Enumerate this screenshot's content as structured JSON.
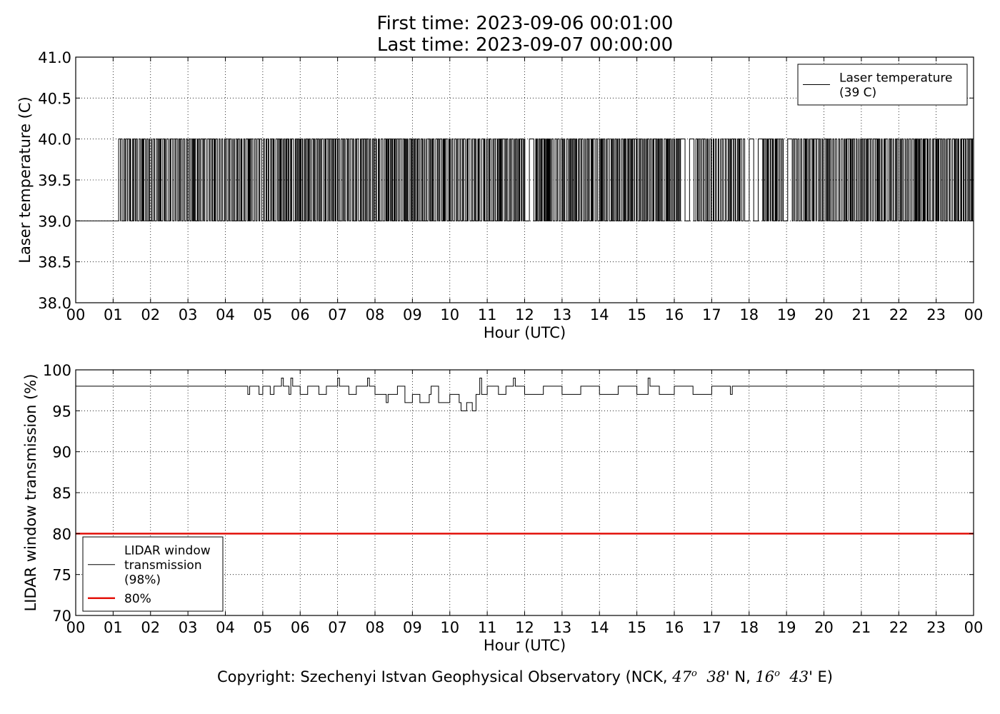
{
  "title": {
    "line1": "First time: 2023-09-06 00:01:00",
    "line2": "Last time: 2023-09-07 00:00:00"
  },
  "copyright": {
    "prefix": "Copyright: Szechenyi Istvan Geophysical Observatory (NCK, ",
    "lat_deg": "47",
    "lat_min": "38",
    "lat_suffix": "' N, ",
    "lon_deg": "16",
    "lon_min": "43",
    "lon_suffix": "' E)",
    "deg_sign": "o"
  },
  "chart_data": [
    {
      "type": "line",
      "title": "",
      "xlabel": "Hour (UTC)",
      "ylabel": "Laser temperature (C)",
      "xlim": [
        0,
        24
      ],
      "ylim": [
        38.0,
        41.0
      ],
      "x_ticks": [
        "00",
        "01",
        "02",
        "03",
        "04",
        "05",
        "06",
        "07",
        "08",
        "09",
        "10",
        "11",
        "12",
        "13",
        "14",
        "15",
        "16",
        "17",
        "18",
        "19",
        "20",
        "21",
        "22",
        "23",
        "00"
      ],
      "y_ticks": [
        "38.0",
        "38.5",
        "39.0",
        "39.5",
        "40.0",
        "40.5",
        "41.0"
      ],
      "grid": true,
      "legend_position": "top-right",
      "series": [
        {
          "name": "Laser temperature\n(39 C)",
          "legend_lines": [
            "Laser temperature",
            "(39 C)"
          ],
          "color": "#000000",
          "levels": [
            39.0,
            40.0
          ],
          "baseline_until_hour": 1.1,
          "note": "rapid toggling between 39.0 and 40.0 C from about 01:05 to 24:00, with calm stretches near 12:00-12:10, 16:10-17:50 and 18:00-18:30",
          "segments": [
            [
              0.0,
              39.0
            ],
            [
              1.1,
              39.0
            ],
            [
              24.0,
              39.0
            ]
          ]
        }
      ]
    },
    {
      "type": "line",
      "title": "",
      "xlabel": "Hour (UTC)",
      "ylabel": "LIDAR window transmission (%)",
      "xlim": [
        0,
        24
      ],
      "ylim": [
        70,
        100
      ],
      "x_ticks": [
        "00",
        "01",
        "02",
        "03",
        "04",
        "05",
        "06",
        "07",
        "08",
        "09",
        "10",
        "11",
        "12",
        "13",
        "14",
        "15",
        "16",
        "17",
        "18",
        "19",
        "20",
        "21",
        "22",
        "23",
        "00"
      ],
      "y_ticks": [
        "70",
        "75",
        "80",
        "85",
        "90",
        "95",
        "100"
      ],
      "grid": true,
      "legend_position": "bottom-left",
      "series": [
        {
          "name": "LIDAR window\ntransmission\n(98%)",
          "legend_lines": [
            "LIDAR window",
            "transmission",
            "(98%)"
          ],
          "color": "#000000",
          "baseline": 98,
          "points": [
            [
              0.0,
              98
            ],
            [
              4.55,
              98
            ],
            [
              4.6,
              97
            ],
            [
              4.65,
              98
            ],
            [
              4.9,
              97
            ],
            [
              5.0,
              98
            ],
            [
              5.2,
              97
            ],
            [
              5.3,
              98
            ],
            [
              5.5,
              99
            ],
            [
              5.55,
              98
            ],
            [
              5.7,
              97
            ],
            [
              5.75,
              99
            ],
            [
              5.8,
              98
            ],
            [
              6.0,
              97
            ],
            [
              6.2,
              98
            ],
            [
              6.5,
              97
            ],
            [
              6.7,
              98
            ],
            [
              7.0,
              99
            ],
            [
              7.05,
              98
            ],
            [
              7.3,
              97
            ],
            [
              7.5,
              98
            ],
            [
              7.8,
              99
            ],
            [
              7.85,
              98
            ],
            [
              8.0,
              97
            ],
            [
              8.3,
              96
            ],
            [
              8.35,
              97
            ],
            [
              8.6,
              98
            ],
            [
              8.8,
              96
            ],
            [
              9.0,
              97
            ],
            [
              9.2,
              96
            ],
            [
              9.45,
              97
            ],
            [
              9.5,
              98
            ],
            [
              9.7,
              96
            ],
            [
              10.0,
              97
            ],
            [
              10.25,
              96
            ],
            [
              10.3,
              95
            ],
            [
              10.45,
              96
            ],
            [
              10.6,
              95
            ],
            [
              10.7,
              97
            ],
            [
              10.8,
              99
            ],
            [
              10.85,
              97
            ],
            [
              11.0,
              98
            ],
            [
              11.3,
              97
            ],
            [
              11.5,
              98
            ],
            [
              11.7,
              99
            ],
            [
              11.75,
              98
            ],
            [
              12.0,
              97
            ],
            [
              12.5,
              98
            ],
            [
              13.0,
              97
            ],
            [
              13.5,
              98
            ],
            [
              14.0,
              97
            ],
            [
              14.5,
              98
            ],
            [
              15.0,
              97
            ],
            [
              15.3,
              99
            ],
            [
              15.35,
              98
            ],
            [
              15.6,
              97
            ],
            [
              16.0,
              98
            ],
            [
              16.5,
              97
            ],
            [
              17.0,
              98
            ],
            [
              17.5,
              97
            ],
            [
              17.55,
              98
            ],
            [
              24.0,
              98
            ]
          ]
        },
        {
          "name": "80%",
          "legend_lines": [
            "80%"
          ],
          "color": "#e3120b",
          "constant": 80
        }
      ]
    }
  ]
}
